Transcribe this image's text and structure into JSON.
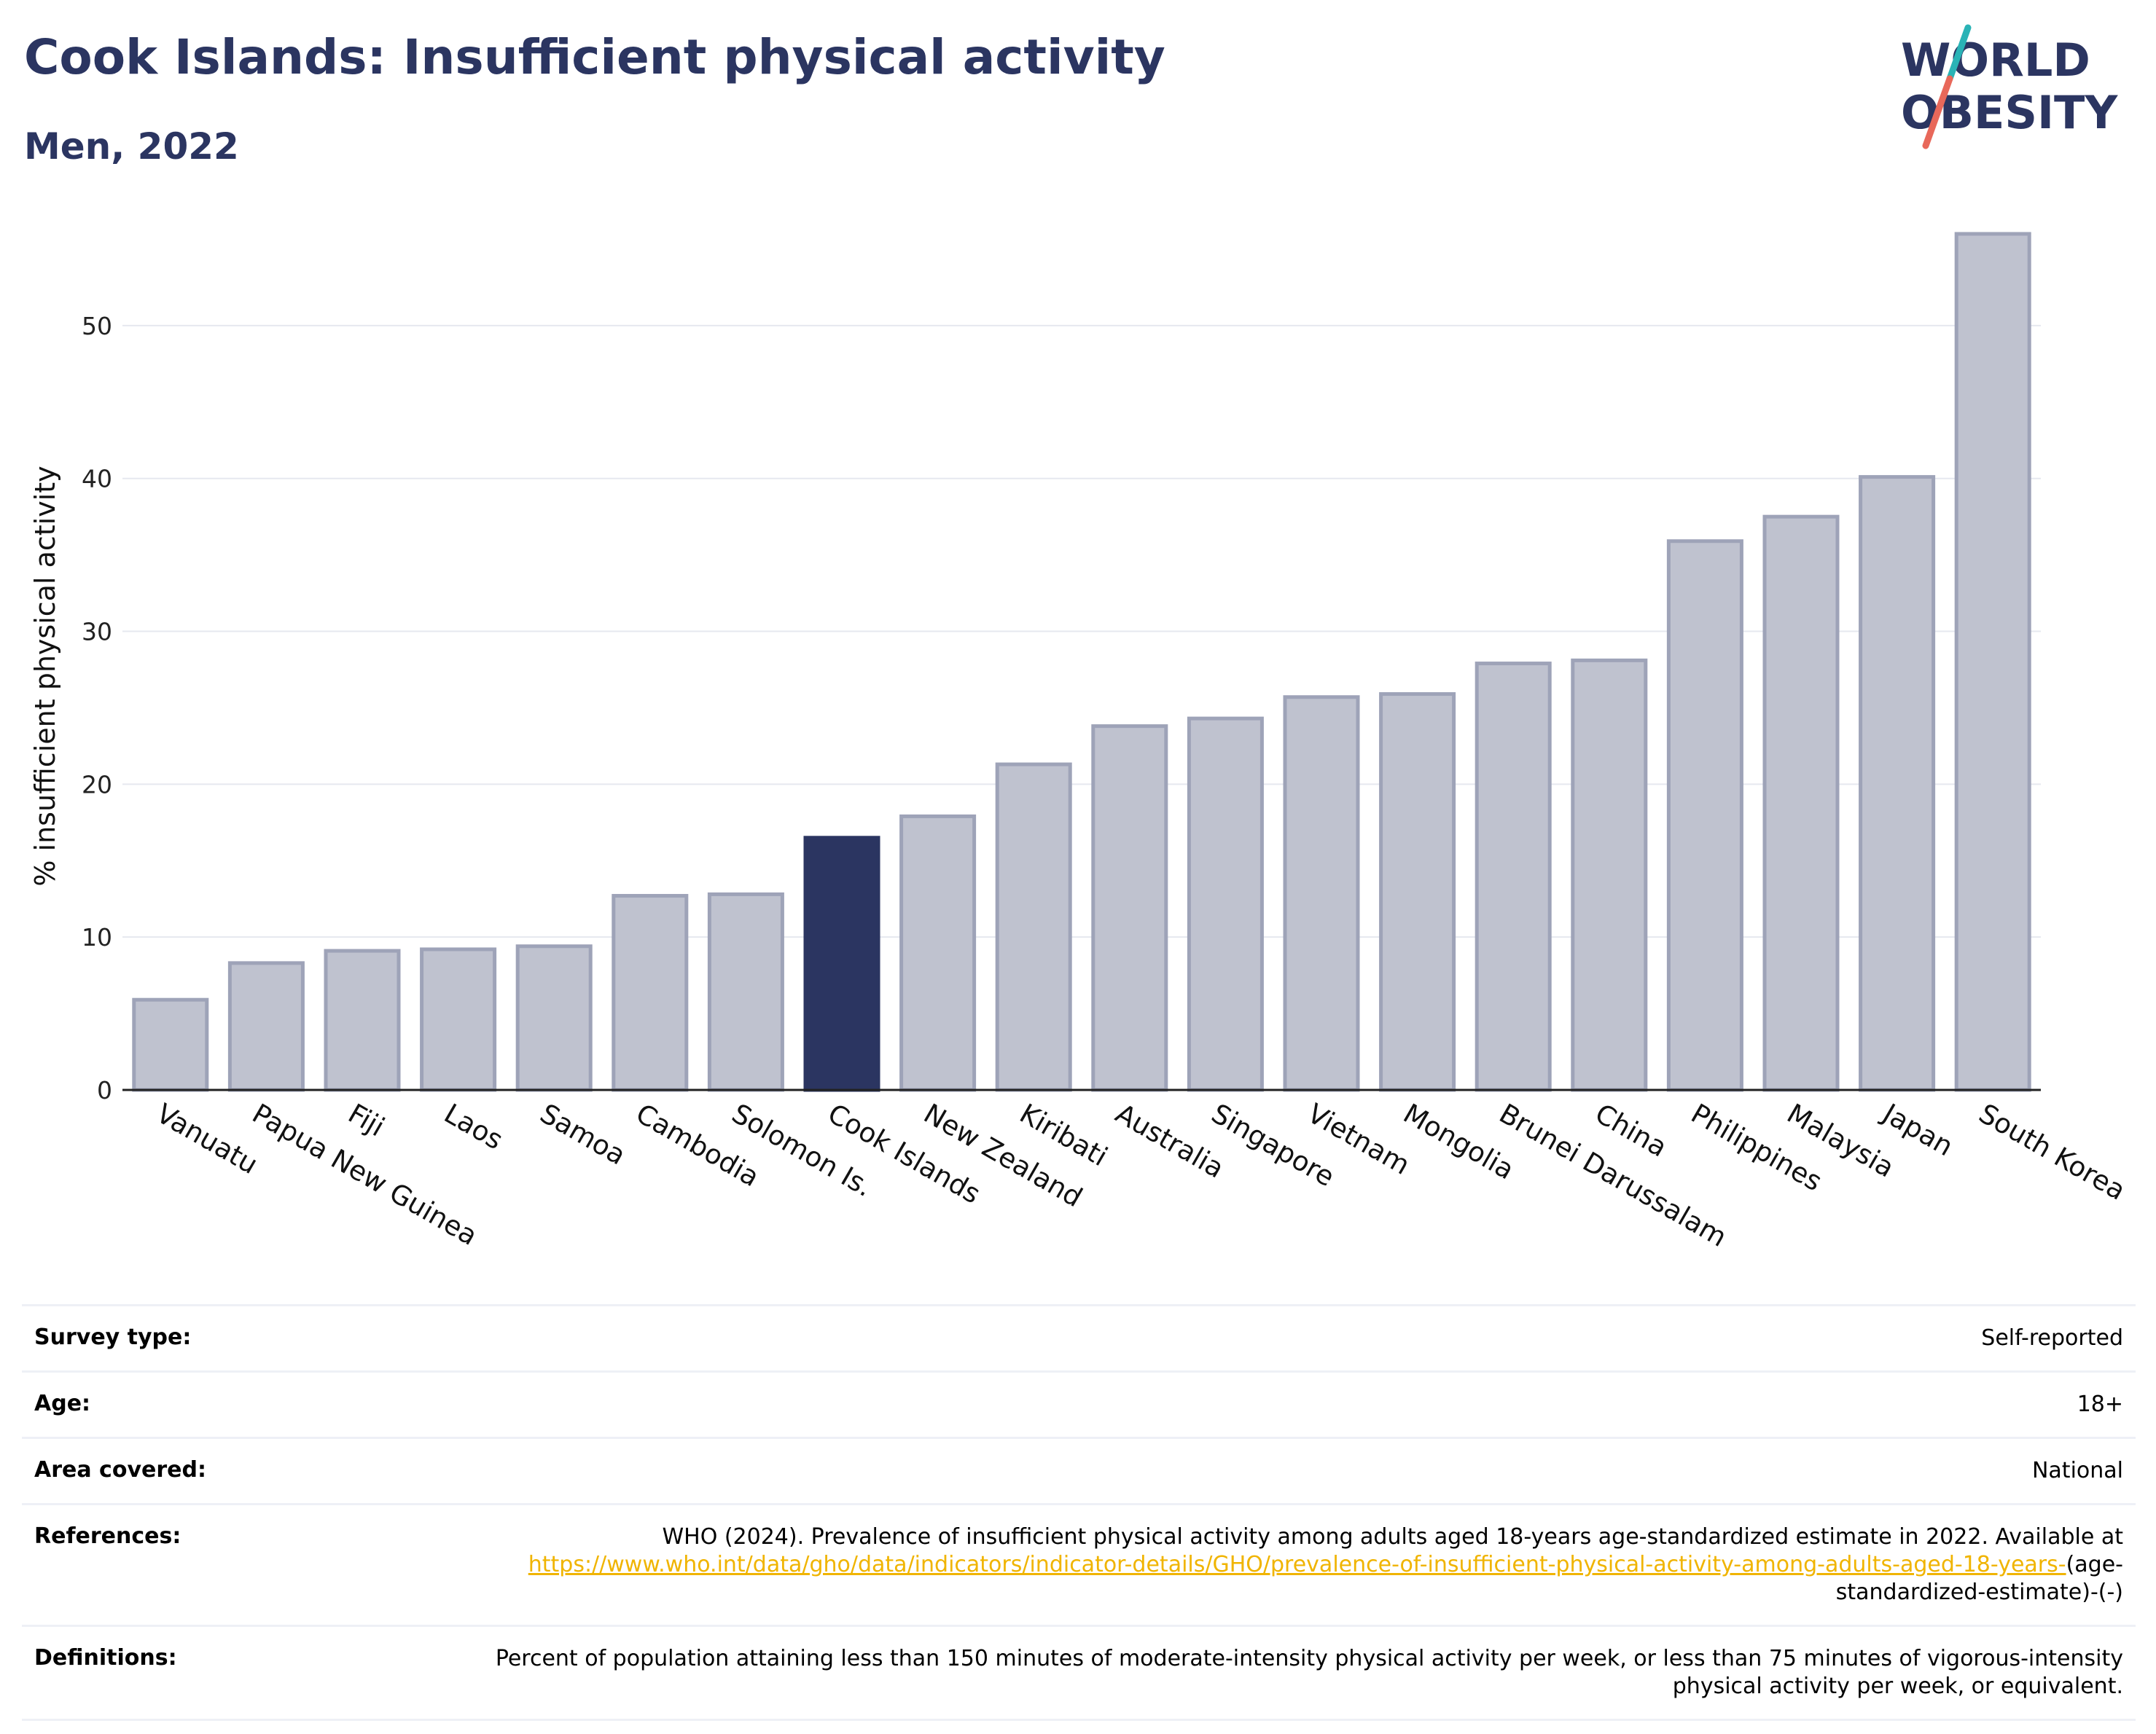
{
  "header": {
    "title": "Cook Islands: Insufficient physical activity",
    "subtitle": "Men, 2022"
  },
  "logo": {
    "line1": "WORLD",
    "line2": "OBESITY",
    "accent_colors": [
      "#2ab3b6",
      "#e8685a"
    ]
  },
  "chart_data": {
    "type": "bar",
    "ylabel": "% insufficient physical activity",
    "ylim": [
      0,
      57
    ],
    "yticks": [
      0,
      10,
      20,
      30,
      40,
      50
    ],
    "grid": true,
    "categories": [
      "Vanuatu",
      "Papua New Guinea",
      "Fiji",
      "Laos",
      "Samoa",
      "Cambodia",
      "Solomon Is.",
      "Cook Islands",
      "New Zealand",
      "Kiribati",
      "Australia",
      "Singapore",
      "Vietnam",
      "Mongolia",
      "Brunei Darussalam",
      "China",
      "Philippines",
      "Malaysia",
      "Japan",
      "South Korea"
    ],
    "values": [
      5.9,
      8.3,
      9.1,
      9.2,
      9.4,
      12.7,
      12.8,
      16.5,
      17.9,
      21.3,
      23.8,
      24.3,
      25.7,
      25.9,
      27.9,
      28.1,
      35.9,
      37.5,
      40.1,
      56.0
    ],
    "highlight": "Cook Islands",
    "colors": {
      "bar": "#bfc2cf",
      "bar_border": "#9ea3b8",
      "highlight": "#2b3561"
    }
  },
  "info": {
    "rows": [
      {
        "label": "Survey type:",
        "value": "Self-reported"
      },
      {
        "label": "Age:",
        "value": "18+"
      },
      {
        "label": "Area covered:",
        "value": "National"
      },
      {
        "label": "References:",
        "value": "WHO (2024). Prevalence of insufficient physical activity among adults aged 18-years age-standardized estimate in 2022. Available at",
        "link": "https://www.who.int/data/gho/data/indicators/indicator-details/GHO/prevalence-of-insufficient-physical-activity-among-adults-aged-18-years-",
        "suffix": "(age-standardized-estimate)-(-)"
      },
      {
        "label": "Definitions:",
        "value": "Percent of population attaining less than 150 minutes of moderate-intensity physical activity per week, or less than 75 minutes of vigorous-intensity physical activity per week, or equivalent."
      }
    ]
  }
}
